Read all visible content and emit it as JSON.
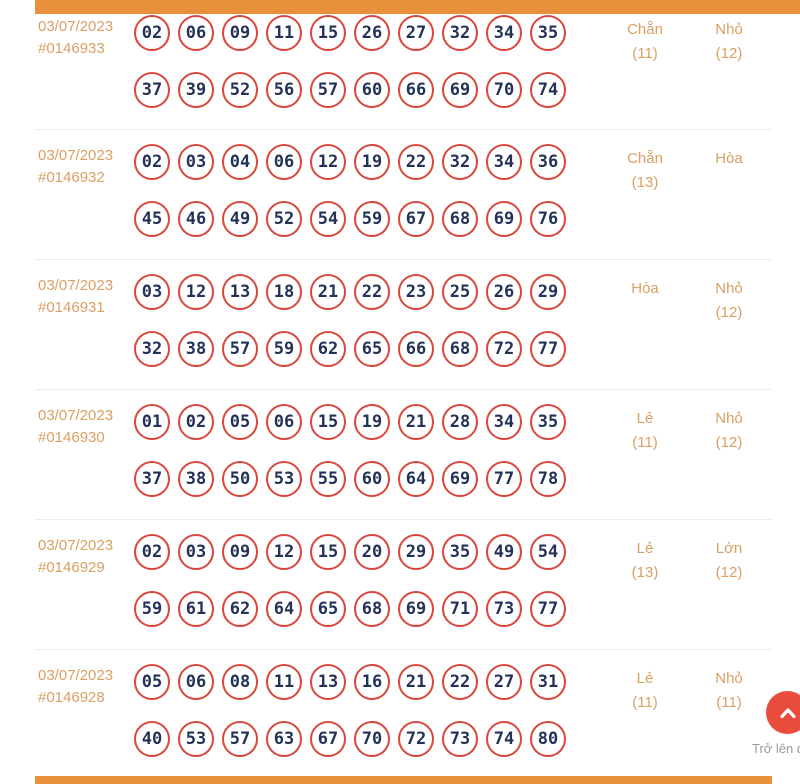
{
  "page": {
    "colors": {
      "bar_orange": "#e8903c",
      "label_orange": "#d99f63",
      "ball_border": "#d8473c",
      "ball_number": "#233358",
      "divider": "#ececec",
      "scroll_button": "#e94b3d",
      "scroll_label": "#9b9b9b"
    },
    "scroll_top": {
      "label": "Trở lên đ",
      "icon": "chevron-up"
    }
  },
  "draws": [
    {
      "date": "03/07/2023",
      "id": "#0146933",
      "numbers_line1": [
        "02",
        "06",
        "09",
        "11",
        "15",
        "26",
        "27",
        "32",
        "34",
        "35"
      ],
      "numbers_line2": [
        "37",
        "39",
        "52",
        "56",
        "57",
        "60",
        "66",
        "69",
        "70",
        "74"
      ],
      "parity": {
        "label": "Chẵn",
        "count": "(11)"
      },
      "size": {
        "label": "Nhỏ",
        "count": "(12)"
      }
    },
    {
      "date": "03/07/2023",
      "id": "#0146932",
      "numbers_line1": [
        "02",
        "03",
        "04",
        "06",
        "12",
        "19",
        "22",
        "32",
        "34",
        "36"
      ],
      "numbers_line2": [
        "45",
        "46",
        "49",
        "52",
        "54",
        "59",
        "67",
        "68",
        "69",
        "76"
      ],
      "parity": {
        "label": "Chẵn",
        "count": "(13)"
      },
      "size": {
        "label": "Hòa",
        "count": ""
      }
    },
    {
      "date": "03/07/2023",
      "id": "#0146931",
      "numbers_line1": [
        "03",
        "12",
        "13",
        "18",
        "21",
        "22",
        "23",
        "25",
        "26",
        "29"
      ],
      "numbers_line2": [
        "32",
        "38",
        "57",
        "59",
        "62",
        "65",
        "66",
        "68",
        "72",
        "77"
      ],
      "parity": {
        "label": "Hòa",
        "count": ""
      },
      "size": {
        "label": "Nhỏ",
        "count": "(12)"
      }
    },
    {
      "date": "03/07/2023",
      "id": "#0146930",
      "numbers_line1": [
        "01",
        "02",
        "05",
        "06",
        "15",
        "19",
        "21",
        "28",
        "34",
        "35"
      ],
      "numbers_line2": [
        "37",
        "38",
        "50",
        "53",
        "55",
        "60",
        "64",
        "69",
        "77",
        "78"
      ],
      "parity": {
        "label": "Lẻ",
        "count": "(11)"
      },
      "size": {
        "label": "Nhỏ",
        "count": "(12)"
      }
    },
    {
      "date": "03/07/2023",
      "id": "#0146929",
      "numbers_line1": [
        "02",
        "03",
        "09",
        "12",
        "15",
        "20",
        "29",
        "35",
        "49",
        "54"
      ],
      "numbers_line2": [
        "59",
        "61",
        "62",
        "64",
        "65",
        "68",
        "69",
        "71",
        "73",
        "77"
      ],
      "parity": {
        "label": "Lẻ",
        "count": "(13)"
      },
      "size": {
        "label": "Lớn",
        "count": "(12)"
      }
    },
    {
      "date": "03/07/2023",
      "id": "#0146928",
      "numbers_line1": [
        "05",
        "06",
        "08",
        "11",
        "13",
        "16",
        "21",
        "22",
        "27",
        "31"
      ],
      "numbers_line2": [
        "40",
        "53",
        "57",
        "63",
        "67",
        "70",
        "72",
        "73",
        "74",
        "80"
      ],
      "parity": {
        "label": "Lẻ",
        "count": "(11)"
      },
      "size": {
        "label": "Nhỏ",
        "count": "(11)"
      }
    }
  ]
}
